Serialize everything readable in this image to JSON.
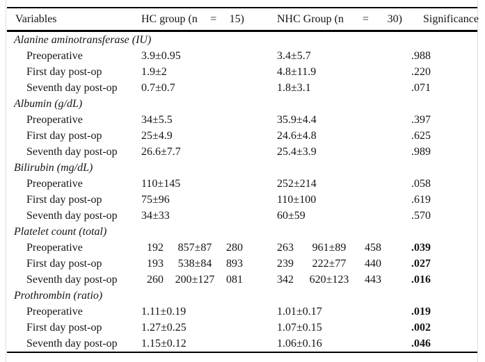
{
  "table": {
    "header": {
      "variables": "Variables",
      "hc_group": {
        "label": "HC group (n",
        "eq": "=",
        "n": "15)"
      },
      "nhc_group": {
        "label": "NHC Group (n",
        "eq": "=",
        "n": "30)"
      },
      "significance": "Significance"
    },
    "sections": [
      {
        "title": "Alanine aminotransferase (IU)",
        "rows": [
          {
            "label": "Preoperative",
            "hc": "3.9±0.95",
            "nhc": "3.4±5.7",
            "sig": ".988"
          },
          {
            "label": "First day post-op",
            "hc": "1.9±2",
            "nhc": "4.8±11.9",
            "sig": ".220"
          },
          {
            "label": "Seventh day post-op",
            "hc": "0.7±0.7",
            "nhc": "1.8±3.1",
            "sig": ".071"
          }
        ]
      },
      {
        "title": "Albumin (g/dL)",
        "rows": [
          {
            "label": "Preoperative",
            "hc": "34±5.5",
            "nhc": "35.9±4.4",
            "sig": ".397"
          },
          {
            "label": "First day post-op",
            "hc": "25±4.9",
            "nhc": "24.6±4.8",
            "sig": ".625"
          },
          {
            "label": "Seventh day post-op",
            "hc": "26.6±7.7",
            "nhc": "25.4±3.9",
            "sig": ".989"
          }
        ]
      },
      {
        "title": "Bilirubin (mg/dL)",
        "rows": [
          {
            "label": "Preoperative",
            "hc": "110±145",
            "nhc": "252±214",
            "sig": ".058"
          },
          {
            "label": "First day post-op",
            "hc": "75±96",
            "nhc": "110±100",
            "sig": ".619"
          },
          {
            "label": "Seventh day post-op",
            "hc": "34±33",
            "nhc": "60±59",
            "sig": ".570"
          }
        ]
      },
      {
        "title": "Platelet count (total)",
        "rows": [
          {
            "label": "Preoperative",
            "hc_parts": [
              "192",
              "857±87",
              "280"
            ],
            "nhc_parts": [
              "263",
              "961±89",
              "458"
            ],
            "sig": ".039"
          },
          {
            "label": "First day post-op",
            "hc_parts": [
              "193",
              "538±84",
              "893"
            ],
            "nhc_parts": [
              "239",
              "222±77",
              "440"
            ],
            "sig": ".027"
          },
          {
            "label": "Seventh day post-op",
            "hc_parts": [
              "260",
              "200±127",
              "081"
            ],
            "nhc_parts": [
              "342",
              "620±123",
              "443"
            ],
            "sig": ".016"
          }
        ]
      },
      {
        "title": "Prothrombin (ratio)",
        "rows": [
          {
            "label": "Preoperative",
            "hc": "1.11±0.19",
            "nhc": "1.01±0.17",
            "sig": ".019"
          },
          {
            "label": "First day post-op",
            "hc": "1.27±0.25",
            "nhc": "1.07±0.15",
            "sig": ".002"
          },
          {
            "label": "Seventh day post-op",
            "hc": "1.15±0.12",
            "nhc": "1.06±0.16",
            "sig": ".046"
          }
        ]
      }
    ]
  }
}
